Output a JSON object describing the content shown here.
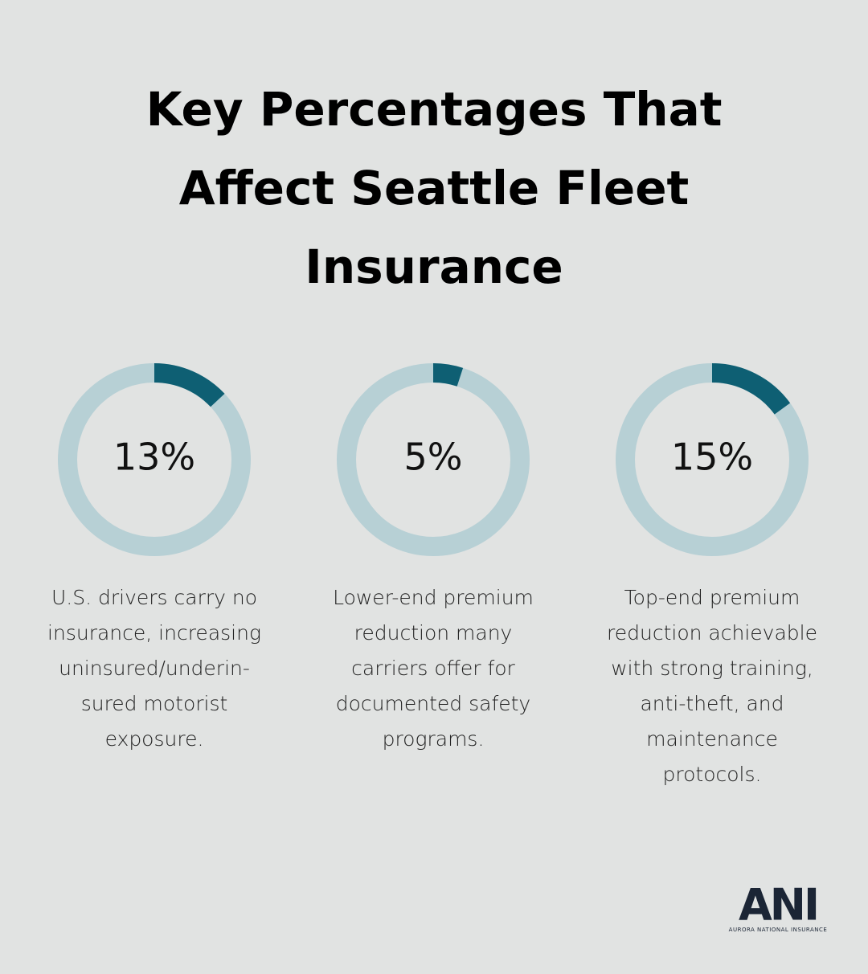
{
  "title": [
    "Key Percentages That",
    "Affect Seattle Fleet",
    "Insurance"
  ],
  "chart_data": [
    {
      "type": "donut",
      "values": [
        13
      ],
      "value_labels": [
        "13%"
      ],
      "color": "#0e5f73",
      "track_color": "#b7d0d5",
      "description": [
        "U.S. drivers carry no",
        "insurance, increasing",
        "uninsured/underin-",
        "sured motorist",
        "exposure."
      ]
    },
    {
      "type": "donut",
      "values": [
        5
      ],
      "value_labels": [
        "5%"
      ],
      "color": "#0e5f73",
      "track_color": "#b7d0d5",
      "description": [
        "Lower-end premium",
        "reduction many",
        "carriers offer for",
        "documented safety",
        "programs."
      ]
    },
    {
      "type": "donut",
      "values": [
        15
      ],
      "value_labels": [
        "15%"
      ],
      "color": "#0e5f73",
      "track_color": "#b7d0d5",
      "description": [
        "Top-end premium",
        "reduction achievable",
        "with strong training,",
        "anti-theft, and",
        "maintenance",
        "protocols."
      ]
    }
  ],
  "logo": {
    "mark": "ANI",
    "name": "AURORA NATIONAL INSURANCE"
  }
}
